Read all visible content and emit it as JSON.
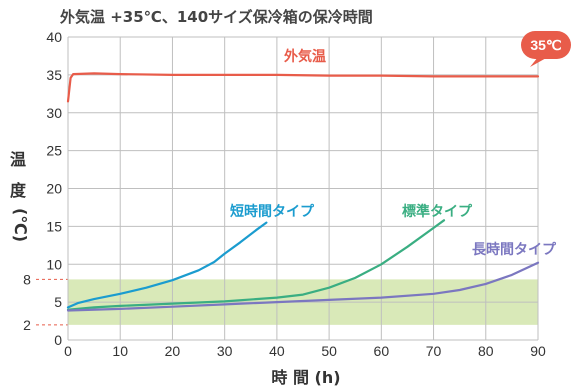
{
  "chart_data": {
    "type": "line",
    "title": "外気温 +35℃、140サイズ保冷箱の保冷時間",
    "xlabel": "時 間 (h)",
    "ylabel": [
      "温",
      "度",
      "(℃)"
    ],
    "xlim": [
      0,
      90
    ],
    "ylim": [
      0,
      40
    ],
    "x_ticks": [
      "0",
      "10",
      "20",
      "30",
      "40",
      "50",
      "60",
      "70",
      "80",
      "90"
    ],
    "y_ticks": [
      "0",
      "5",
      "10",
      "15",
      "20",
      "25",
      "30",
      "35",
      "40"
    ],
    "grid": true,
    "band": {
      "from": 2,
      "to": 8,
      "color": "#d9e9b8",
      "marker_labels": [
        "8",
        "2"
      ]
    },
    "callout": {
      "label": "35℃",
      "value": 35,
      "color": "#e85c4a"
    },
    "series": [
      {
        "name": "外気温",
        "color": "#e85c4a",
        "x": [
          0,
          0.5,
          1,
          5,
          10,
          20,
          30,
          40,
          50,
          60,
          70,
          80,
          90
        ],
        "y": [
          31.5,
          34.6,
          35.1,
          35.2,
          35.1,
          35.0,
          35.0,
          35.0,
          34.9,
          34.9,
          34.8,
          34.8,
          34.8
        ]
      },
      {
        "name": "短時間タイプ",
        "color": "#1b9ccf",
        "x": [
          0,
          2,
          5,
          10,
          15,
          20,
          25,
          28,
          30,
          33,
          36,
          38
        ],
        "y": [
          4.3,
          4.9,
          5.4,
          6.1,
          6.9,
          7.9,
          9.2,
          10.3,
          11.4,
          12.9,
          14.5,
          15.5
        ]
      },
      {
        "name": "標準タイプ",
        "color": "#3aae82",
        "x": [
          0,
          5,
          10,
          20,
          30,
          40,
          45,
          50,
          55,
          60,
          65,
          70,
          72
        ],
        "y": [
          4.0,
          4.3,
          4.5,
          4.8,
          5.1,
          5.6,
          6.0,
          6.9,
          8.2,
          10.0,
          12.3,
          14.8,
          15.8
        ]
      },
      {
        "name": "長時間タイプ",
        "color": "#7b77c0",
        "x": [
          0,
          10,
          20,
          30,
          40,
          50,
          60,
          70,
          75,
          80,
          85,
          90
        ],
        "y": [
          3.9,
          4.1,
          4.4,
          4.7,
          5.0,
          5.3,
          5.6,
          6.1,
          6.6,
          7.4,
          8.6,
          10.2
        ]
      }
    ]
  }
}
